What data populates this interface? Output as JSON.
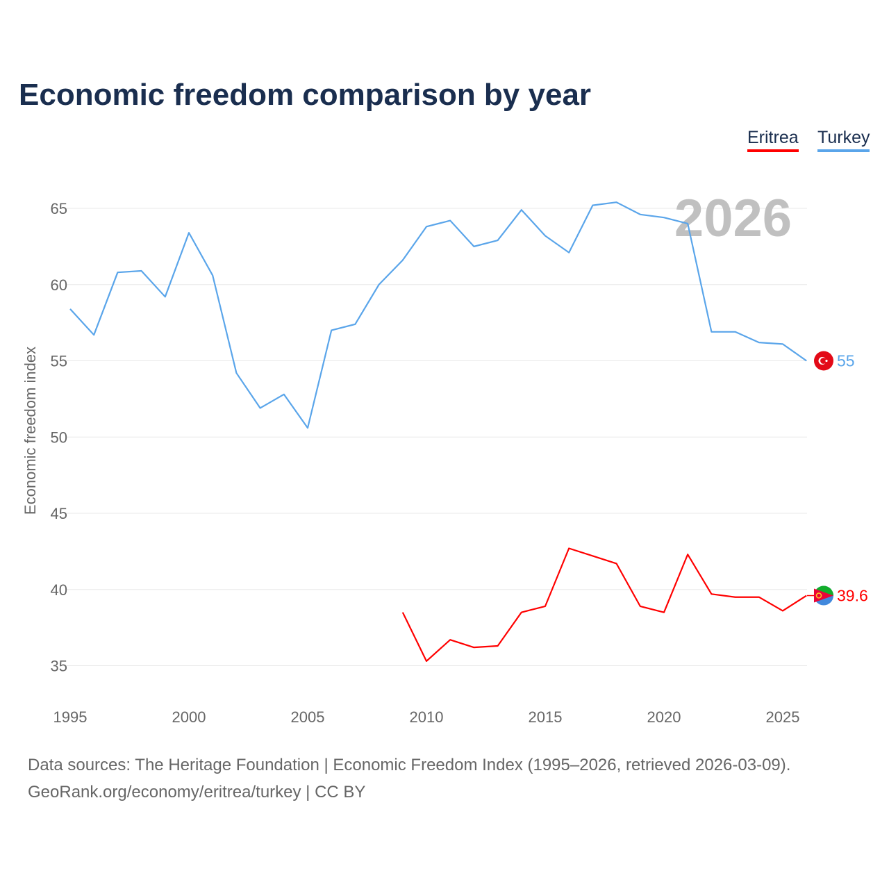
{
  "title": "Economic freedom comparison by year",
  "legend": [
    {
      "label": "Eritrea",
      "color": "#ff0000"
    },
    {
      "label": "Turkey",
      "color": "#5aa5ea"
    }
  ],
  "watermark_year": "2026",
  "footer": {
    "line1": "Data sources: The Heritage Foundation | Economic Freedom Index (1995–2026, retrieved 2026-03-09).",
    "line2": "GeoRank.org/economy/eritrea/turkey | CC BY"
  },
  "chart_data": {
    "type": "line",
    "title": "Economic freedom comparison by year",
    "xlabel": "",
    "ylabel": "Economic freedom index",
    "xlim": [
      1995,
      2026
    ],
    "ylim": [
      33,
      67
    ],
    "xticks": [
      1995,
      2000,
      2005,
      2010,
      2015,
      2020,
      2025
    ],
    "yticks": [
      35,
      40,
      45,
      50,
      55,
      60,
      65
    ],
    "grid": true,
    "legend_position": "top-right",
    "series": [
      {
        "name": "Eritrea",
        "color": "#ff0000",
        "end_label": "39.6",
        "x": [
          2009,
          2010,
          2011,
          2012,
          2013,
          2014,
          2015,
          2016,
          2017,
          2018,
          2019,
          2020,
          2021,
          2022,
          2023,
          2024,
          2025,
          2026
        ],
        "values": [
          38.5,
          35.3,
          36.7,
          36.2,
          36.3,
          38.5,
          38.9,
          42.7,
          42.2,
          41.7,
          38.9,
          38.5,
          42.3,
          39.7,
          39.5,
          39.5,
          38.6,
          39.6
        ]
      },
      {
        "name": "Turkey",
        "color": "#5aa5ea",
        "end_label": "55",
        "x": [
          1995,
          1996,
          1997,
          1998,
          1999,
          2000,
          2001,
          2002,
          2003,
          2004,
          2005,
          2006,
          2007,
          2008,
          2009,
          2010,
          2011,
          2012,
          2013,
          2014,
          2015,
          2016,
          2017,
          2018,
          2019,
          2020,
          2021,
          2022,
          2023,
          2024,
          2025,
          2026
        ],
        "values": [
          58.4,
          56.7,
          60.8,
          60.9,
          59.2,
          63.4,
          60.6,
          54.2,
          51.9,
          52.8,
          50.6,
          57.0,
          57.4,
          60.0,
          61.6,
          63.8,
          64.2,
          62.5,
          62.9,
          64.9,
          63.2,
          62.1,
          65.2,
          65.4,
          64.6,
          64.4,
          64.0,
          56.9,
          56.9,
          56.2,
          56.1,
          55.0
        ]
      }
    ]
  }
}
